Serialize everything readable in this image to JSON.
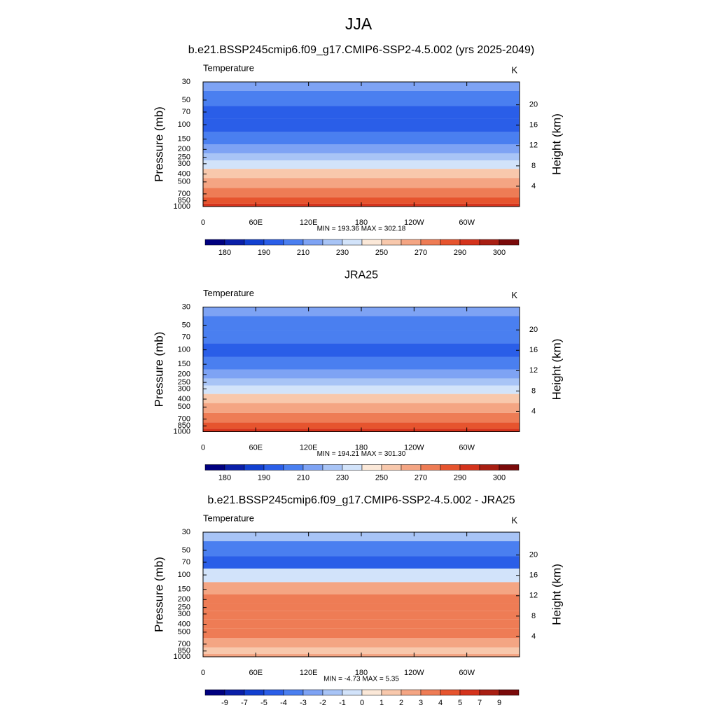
{
  "title": "JJA",
  "chart_data": [
    {
      "type": "contour",
      "title": "b.e21.BSSP245cmip6.f09_g17.CMIP6-SSP2-4.5.002 (yrs 2025-2049)",
      "left_label": "Temperature",
      "right_label": "K",
      "ylabel": "Pressure (mb)",
      "y2label": "Height (km)",
      "stats": "MIN = 193.36  MAX = 302.18",
      "xlim": [
        0,
        360
      ],
      "xticks": [
        0,
        {
          "value": 60,
          "label": "60E"
        },
        {
          "value": 120,
          "label": "120E"
        },
        180,
        {
          "value": 240,
          "label": "120W"
        },
        {
          "value": 300,
          "label": "60W"
        }
      ],
      "ylim": [
        1000,
        30
      ],
      "ylog": true,
      "yticks": [
        30,
        50,
        70,
        100,
        150,
        200,
        250,
        300,
        400,
        500,
        700,
        850,
        1000
      ],
      "y2lim": [
        0,
        24.5
      ],
      "y2ticks": [
        4,
        8,
        12,
        16,
        20
      ],
      "field": {
        "y": [
          30,
          50,
          70,
          100,
          150,
          200,
          250,
          300,
          400,
          500,
          700,
          850,
          1000
        ],
        "values": [
          215,
          205,
          198,
          196,
          206,
          218,
          228,
          238,
          252,
          262,
          276,
          285,
          294
        ]
      },
      "levels": [
        180,
        185,
        190,
        200,
        210,
        220,
        230,
        240,
        250,
        260,
        270,
        280,
        290,
        295,
        300
      ],
      "cbar_ticks": [
        180,
        190,
        210,
        230,
        250,
        270,
        290,
        300
      ],
      "colors": [
        "#00007f",
        "#0a1fa8",
        "#1240d0",
        "#2a5ee8",
        "#4a7ff0",
        "#7ea3f4",
        "#a8c4f6",
        "#d2e3fa",
        "#fbe8d8",
        "#f8c8ac",
        "#f4a583",
        "#ee7c55",
        "#e6542e",
        "#d4331c",
        "#a81e12",
        "#7a0a0a"
      ]
    },
    {
      "type": "contour",
      "title": "JRA25",
      "left_label": "Temperature",
      "right_label": "K",
      "ylabel": "Pressure (mb)",
      "y2label": "Height (km)",
      "stats": "MIN = 194.21  MAX = 301.30",
      "xlim": [
        0,
        360
      ],
      "xticks": [
        0,
        {
          "value": 60,
          "label": "60E"
        },
        {
          "value": 120,
          "label": "120E"
        },
        180,
        {
          "value": 240,
          "label": "120W"
        },
        {
          "value": 300,
          "label": "60W"
        }
      ],
      "ylim": [
        1000,
        30
      ],
      "ylog": true,
      "yticks": [
        30,
        50,
        70,
        100,
        150,
        200,
        250,
        300,
        400,
        500,
        700,
        850,
        1000
      ],
      "y2lim": [
        0,
        24.5
      ],
      "y2ticks": [
        4,
        8,
        12,
        16,
        20
      ],
      "field": {
        "y": [
          30,
          50,
          70,
          100,
          150,
          200,
          250,
          300,
          400,
          500,
          700,
          850,
          1000
        ],
        "values": [
          216,
          207,
          202,
          196,
          206,
          218,
          226,
          236,
          250,
          260,
          274,
          284,
          292
        ]
      },
      "levels": [
        180,
        185,
        190,
        200,
        210,
        220,
        230,
        240,
        250,
        260,
        270,
        280,
        290,
        295,
        300
      ],
      "cbar_ticks": [
        180,
        190,
        210,
        230,
        250,
        270,
        290,
        300
      ],
      "colors": [
        "#00007f",
        "#0a1fa8",
        "#1240d0",
        "#2a5ee8",
        "#4a7ff0",
        "#7ea3f4",
        "#a8c4f6",
        "#d2e3fa",
        "#fbe8d8",
        "#f8c8ac",
        "#f4a583",
        "#ee7c55",
        "#e6542e",
        "#d4331c",
        "#a81e12",
        "#7a0a0a"
      ]
    },
    {
      "type": "contour",
      "title": "b.e21.BSSP245cmip6.f09_g17.CMIP6-SSP2-4.5.002 - JRA25",
      "left_label": "Temperature",
      "right_label": "K",
      "ylabel": "Pressure (mb)",
      "y2label": "Height (km)",
      "stats": "MIN =  -4.73  MAX =   5.35",
      "xlim": [
        0,
        360
      ],
      "xticks": [
        0,
        {
          "value": 60,
          "label": "60E"
        },
        {
          "value": 120,
          "label": "120E"
        },
        180,
        {
          "value": 240,
          "label": "120W"
        },
        {
          "value": 300,
          "label": "60W"
        }
      ],
      "ylim": [
        1000,
        30
      ],
      "ylog": true,
      "yticks": [
        30,
        50,
        70,
        100,
        150,
        200,
        250,
        300,
        400,
        500,
        700,
        850,
        1000
      ],
      "y2lim": [
        0,
        24.5
      ],
      "y2ticks": [
        4,
        8,
        12,
        16,
        20
      ],
      "field": {
        "y": [
          30,
          50,
          70,
          100,
          150,
          200,
          250,
          300,
          400,
          500,
          700,
          850,
          1000
        ],
        "values": [
          -1.5,
          -3.5,
          -4.5,
          -0.5,
          2.5,
          3.5,
          3.5,
          3.5,
          3.5,
          3.5,
          2.5,
          1.5,
          2.5
        ]
      },
      "levels": [
        -9,
        -7,
        -5,
        -4,
        -3,
        -2,
        -1,
        0,
        1,
        2,
        3,
        4,
        5,
        7,
        9
      ],
      "cbar_ticks": [
        -9,
        -7,
        -5,
        -4,
        -3,
        -2,
        -1,
        0,
        1,
        2,
        3,
        4,
        5,
        7,
        9
      ],
      "colors": [
        "#00007f",
        "#0a1fa8",
        "#1240d0",
        "#2a5ee8",
        "#4a7ff0",
        "#7ea3f4",
        "#a8c4f6",
        "#d2e3fa",
        "#fbe8d8",
        "#f8c8ac",
        "#f4a583",
        "#ee7c55",
        "#e6542e",
        "#d4331c",
        "#a81e12",
        "#7a0a0a"
      ]
    }
  ]
}
